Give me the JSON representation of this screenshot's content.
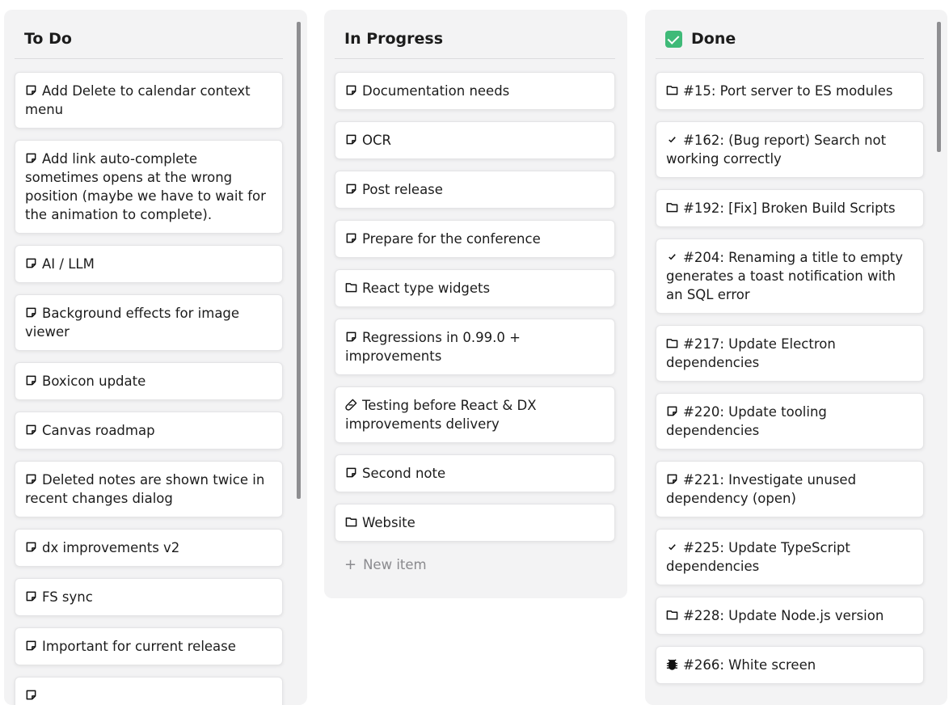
{
  "columns": [
    {
      "title": "To Do",
      "emoji": "",
      "items": [
        {
          "icon": "note-icon",
          "text": "Add Delete to calendar context menu"
        },
        {
          "icon": "note-icon",
          "text": "Add link auto-complete sometimes opens at the wrong position (maybe we have to wait for the animation to complete)."
        },
        {
          "icon": "note-icon",
          "text": "AI / LLM"
        },
        {
          "icon": "note-icon",
          "text": "Background effects for image viewer"
        },
        {
          "icon": "note-icon",
          "text": "Boxicon update"
        },
        {
          "icon": "note-icon",
          "text": "Canvas roadmap"
        },
        {
          "icon": "note-icon",
          "text": "Deleted notes are shown twice in recent changes dialog"
        },
        {
          "icon": "note-icon",
          "text": "dx improvements v2"
        },
        {
          "icon": "note-icon",
          "text": "FS sync"
        },
        {
          "icon": "note-icon",
          "text": "Important for current release"
        },
        {
          "icon": "note-icon",
          "text": ""
        }
      ]
    },
    {
      "title": "In Progress",
      "emoji": "",
      "new_item": "New item",
      "items": [
        {
          "icon": "note-icon",
          "text": "Documentation needs"
        },
        {
          "icon": "note-icon",
          "text": "OCR"
        },
        {
          "icon": "note-icon",
          "text": "Post release"
        },
        {
          "icon": "note-icon",
          "text": "Prepare for the conference"
        },
        {
          "icon": "folder-icon",
          "text": "React type widgets"
        },
        {
          "icon": "note-icon",
          "text": "Regressions in 0.99.0 + improvements"
        },
        {
          "icon": "test-tube-icon",
          "text": "Testing before React & DX improvements delivery"
        },
        {
          "icon": "note-icon",
          "text": "Second note"
        },
        {
          "icon": "folder-icon",
          "text": "Website"
        }
      ]
    },
    {
      "title": "Done",
      "emoji": "check-mark-button-emoji",
      "items": [
        {
          "icon": "folder-icon",
          "text": "#15: Port server to ES modules"
        },
        {
          "icon": "check-icon",
          "text": "#162: (Bug report) Search not working correctly"
        },
        {
          "icon": "folder-icon",
          "text": "#192: [Fix] Broken Build Scripts"
        },
        {
          "icon": "check-icon",
          "text": "#204: Renaming a title to empty generates a toast notification with an SQL error"
        },
        {
          "icon": "folder-icon",
          "text": "#217: Update Electron dependencies"
        },
        {
          "icon": "note-icon",
          "text": "#220: Update tooling dependencies"
        },
        {
          "icon": "note-icon",
          "text": "#221: Investigate unused dependency (open)"
        },
        {
          "icon": "check-icon",
          "text": "#225: Update TypeScript dependencies"
        },
        {
          "icon": "folder-icon",
          "text": "#228: Update Node.js version"
        },
        {
          "icon": "bug-icon",
          "text": "#266: White screen"
        }
      ]
    }
  ]
}
